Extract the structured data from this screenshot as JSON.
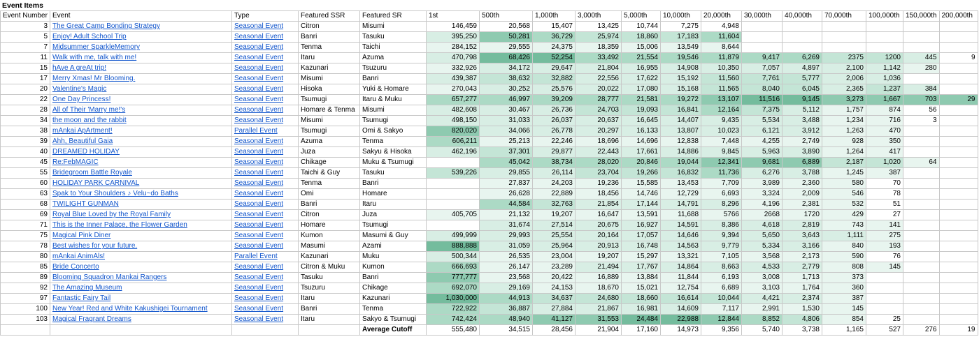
{
  "sheet_title": "Event Items",
  "columns": [
    "Event Number",
    "Event",
    "Type",
    "Featured SSR",
    "Featured SR",
    "1st",
    "500th",
    "1,000th",
    "3,000th",
    "5,000th",
    "10,000th",
    "20,000th",
    "30,000th",
    "40,000th",
    "70,000th",
    "100,000th",
    "150,000th",
    "200,000th"
  ],
  "rows": [
    {
      "no": "3",
      "event": "The Great Camp Bonding Strategy",
      "type": "Seasonal Event",
      "ssr": "Citron",
      "sr": "Misumi",
      "cutoffs": [
        "146,459",
        "20,568",
        "15,407",
        "13,425",
        "10,744",
        "7,275",
        "4,948",
        "",
        "",
        "",
        "",
        "",
        ""
      ],
      "shades": [
        0,
        0,
        0,
        0,
        0,
        0,
        0,
        0,
        0,
        0,
        0,
        0,
        0
      ]
    },
    {
      "no": "5",
      "event": "Enjoy! Adult School Trip",
      "type": "Seasonal Event",
      "ssr": "Banri",
      "sr": "Tasuku",
      "cutoffs": [
        "395,250",
        "50,281",
        "36,729",
        "25,974",
        "18,860",
        "17,183",
        "11,604",
        "",
        "",
        "",
        "",
        "",
        ""
      ],
      "shades": [
        2,
        5,
        4,
        3,
        3,
        3,
        4,
        0,
        0,
        0,
        0,
        0,
        0
      ]
    },
    {
      "no": "7",
      "event": "Midsummer SparkleMemory",
      "type": "Seasonal Event",
      "ssr": "Tenma",
      "sr": "Taichi",
      "cutoffs": [
        "284,152",
        "29,555",
        "24,375",
        "18,359",
        "15,006",
        "13,549",
        "8,644",
        "",
        "",
        "",
        "",
        "",
        ""
      ],
      "shades": [
        1,
        1,
        1,
        1,
        1,
        1,
        1,
        0,
        0,
        0,
        0,
        0,
        0
      ]
    },
    {
      "no": "11",
      "event": "Walk with me, talk with me!",
      "type": "Seasonal Event",
      "ssr": "Itaru",
      "sr": "Azuma",
      "cutoffs": [
        "470,798",
        "68,426",
        "52,254",
        "33,492",
        "21,554",
        "19,546",
        "11,879",
        "9,417",
        "6,269",
        "2375",
        "1200",
        "445",
        "9"
      ],
      "shades": [
        2,
        6,
        6,
        4,
        4,
        4,
        4,
        4,
        4,
        3,
        3,
        2,
        0
      ]
    },
    {
      "no": "15",
      "event": "hAve A greAt trip!",
      "type": "Seasonal Event",
      "ssr": "Kazunari",
      "sr": "Tsuzuru",
      "cutoffs": [
        "332,926",
        "34,172",
        "29,647",
        "21,804",
        "16,955",
        "14,908",
        "10,350",
        "7,057",
        "4,897",
        "2,100",
        "1,142",
        "280",
        ""
      ],
      "shades": [
        1,
        2,
        2,
        2,
        2,
        2,
        2,
        2,
        2,
        2,
        2,
        1,
        0
      ]
    },
    {
      "no": "17",
      "event": "Merry Xmas! Mr Blooming.",
      "type": "Seasonal Event",
      "ssr": "Misumi",
      "sr": "Banri",
      "cutoffs": [
        "439,387",
        "38,632",
        "32,882",
        "22,556",
        "17,622",
        "15,192",
        "11,560",
        "7,761",
        "5,777",
        "2,006",
        "1,036",
        "",
        ""
      ],
      "shades": [
        2,
        3,
        3,
        2,
        2,
        2,
        3,
        3,
        3,
        2,
        2,
        0,
        0
      ]
    },
    {
      "no": "20",
      "event": "Valentine's Magic",
      "type": "Seasonal Event",
      "ssr": "Hisoka",
      "sr": "Yuki & Homare",
      "cutoffs": [
        "270,043",
        "30,252",
        "25,576",
        "20,022",
        "17,080",
        "15,168",
        "11,565",
        "8,040",
        "6,045",
        "2,365",
        "1,237",
        "384",
        ""
      ],
      "shades": [
        1,
        2,
        2,
        2,
        2,
        2,
        3,
        3,
        3,
        2,
        3,
        2,
        0
      ]
    },
    {
      "no": "22",
      "event": "One Day Princess!",
      "type": "Seasonal Event",
      "ssr": "Tsumugi",
      "sr": "Itaru & Muku",
      "cutoffs": [
        "657,277",
        "46,997",
        "39,209",
        "28,777",
        "21,581",
        "19,272",
        "13,107",
        "11,516",
        "9,145",
        "3,273",
        "1,667",
        "703",
        "29"
      ],
      "shades": [
        4,
        4,
        4,
        4,
        4,
        4,
        5,
        6,
        6,
        5,
        5,
        5,
        5
      ]
    },
    {
      "no": "28",
      "event": "All of Their 'Marry me!'s",
      "type": "Seasonal Event",
      "ssr": "Homare & Tenma",
      "sr": "Misumi",
      "cutoffs": [
        "482,608",
        "30,467",
        "26,736",
        "24,703",
        "19,093",
        "16,841",
        "12,164",
        "7,375",
        "5,112",
        "1,757",
        "874",
        "56",
        ""
      ],
      "shades": [
        2,
        2,
        2,
        3,
        3,
        3,
        4,
        3,
        2,
        1,
        1,
        0,
        0
      ]
    },
    {
      "no": "34",
      "event": "the moon and the rabbit",
      "type": "Seasonal Event",
      "ssr": "Misumi",
      "sr": "Tsumugi",
      "cutoffs": [
        "498,150",
        "31,033",
        "26,037",
        "20,637",
        "16,645",
        "14,407",
        "9,435",
        "5,534",
        "3,488",
        "1,234",
        "716",
        "3",
        ""
      ],
      "shades": [
        2,
        2,
        2,
        2,
        2,
        2,
        2,
        2,
        2,
        1,
        1,
        0,
        0
      ]
    },
    {
      "no": "38",
      "event": "mAnkai ApArtment!",
      "type": "Parallel Event",
      "ssr": "Tsumugi",
      "sr": "Omi & Sakyo",
      "cutoffs": [
        "820,020",
        "34,066",
        "26,778",
        "20,297",
        "16,133",
        "13,807",
        "10,023",
        "6,121",
        "3,912",
        "1,263",
        "470",
        "",
        ""
      ],
      "shades": [
        5,
        2,
        2,
        2,
        2,
        2,
        2,
        2,
        2,
        1,
        1,
        0,
        0
      ]
    },
    {
      "no": "39",
      "event": "Ahh, Beautiful Gaia",
      "type": "Seasonal Event",
      "ssr": "Azuma",
      "sr": "Tenma",
      "cutoffs": [
        "606,211",
        "25,213",
        "22,246",
        "18,696",
        "14,696",
        "12,838",
        "7,448",
        "4,255",
        "2,749",
        "928",
        "350",
        "",
        ""
      ],
      "shades": [
        4,
        1,
        1,
        1,
        1,
        1,
        1,
        1,
        1,
        1,
        1,
        0,
        0
      ]
    },
    {
      "no": "40",
      "event": "DREAMED HOLIDAY",
      "type": "Seasonal Event",
      "ssr": "Juza",
      "sr": "Sakyu & Hisoka",
      "cutoffs": [
        "462,196",
        "37,301",
        "29,877",
        "22,443",
        "17,661",
        "14,886",
        "9,845",
        "5,963",
        "3,890",
        "1,264",
        "417",
        "",
        ""
      ],
      "shades": [
        2,
        3,
        2,
        2,
        2,
        2,
        2,
        2,
        2,
        1,
        1,
        0,
        0
      ]
    },
    {
      "no": "45",
      "event": "Re:FebMAGIC",
      "type": "Seasonal Event",
      "ssr": "Chikage",
      "sr": "Muku & Tsumugi",
      "cutoffs": [
        "",
        "45,042",
        "38,734",
        "28,020",
        "20,846",
        "19,044",
        "12,341",
        "9,681",
        "6,889",
        "2,187",
        "1,020",
        "64",
        ""
      ],
      "shades": [
        0,
        4,
        4,
        4,
        4,
        4,
        5,
        5,
        5,
        3,
        3,
        1,
        0
      ]
    },
    {
      "no": "55",
      "event": "Bridegroom Battle Royale",
      "type": "Seasonal Event",
      "ssr": "Taichi & Guy",
      "sr": "Tasuku",
      "cutoffs": [
        "539,226",
        "29,855",
        "26,114",
        "23,704",
        "19,266",
        "16,832",
        "11,736",
        "6,276",
        "3,788",
        "1,245",
        "387",
        "",
        ""
      ],
      "shades": [
        3,
        2,
        2,
        3,
        3,
        3,
        4,
        2,
        2,
        1,
        1,
        0,
        0
      ]
    },
    {
      "no": "60",
      "event": "HOLIDAY PARK CARNIVAL",
      "type": "Seasonal Event",
      "ssr": "Tenma",
      "sr": "Banri",
      "cutoffs": [
        "",
        "27,837",
        "24,203",
        "19,236",
        "15,585",
        "13,453",
        "7,709",
        "3,989",
        "2,360",
        "580",
        "70",
        "",
        ""
      ],
      "shades": [
        0,
        1,
        1,
        1,
        1,
        1,
        1,
        1,
        1,
        1,
        0,
        0,
        0
      ]
    },
    {
      "no": "63",
      "event": "Spak to Your Shoulders ♪ Velu~do Baths",
      "type": "Seasonal Event",
      "ssr": "Omi",
      "sr": "Homare",
      "cutoffs": [
        "",
        "26,628",
        "22,889",
        "18,456",
        "14,746",
        "12,729",
        "6,693",
        "3,324",
        "2,009",
        "546",
        "78",
        "",
        ""
      ],
      "shades": [
        0,
        1,
        1,
        1,
        1,
        1,
        1,
        1,
        1,
        1,
        0,
        0,
        0
      ]
    },
    {
      "no": "68",
      "event": "TWILIGHT GUNMAN",
      "type": "Seasonal Event",
      "ssr": "Banri",
      "sr": "Itaru",
      "cutoffs": [
        "",
        "44,584",
        "32,763",
        "21,854",
        "17,144",
        "14,791",
        "8,296",
        "4,196",
        "2,381",
        "532",
        "51",
        "",
        ""
      ],
      "shades": [
        0,
        4,
        3,
        2,
        2,
        2,
        2,
        1,
        1,
        1,
        0,
        0,
        0
      ]
    },
    {
      "no": "69",
      "event": "Royal Blue Loved by the Royal Family",
      "type": "Seasonal Event",
      "ssr": "Citron",
      "sr": "Juza",
      "cutoffs": [
        "405,705",
        "21,132",
        "19,207",
        "16,647",
        "13,591",
        "11,688",
        "5766",
        "2668",
        "1720",
        "429",
        "27",
        "",
        ""
      ],
      "shades": [
        1,
        1,
        1,
        1,
        1,
        1,
        1,
        1,
        1,
        1,
        0,
        0,
        0
      ]
    },
    {
      "no": "71",
      "event": "This is the Inner Palace, the Flower Garden",
      "type": "Seasonal Event",
      "ssr": "Homare",
      "sr": "Tsumugi",
      "cutoffs": [
        "",
        "31,674",
        "27,514",
        "20,675",
        "16,927",
        "14,591",
        "8,386",
        "4,618",
        "2,819",
        "743",
        "141",
        "",
        ""
      ],
      "shades": [
        0,
        2,
        2,
        2,
        2,
        2,
        2,
        2,
        2,
        1,
        1,
        0,
        0
      ]
    },
    {
      "no": "75",
      "event": "Magical Pink Diner",
      "type": "Seasonal Event",
      "ssr": "Kumon",
      "sr": "Masumi & Guy",
      "cutoffs": [
        "499,999",
        "29,993",
        "25,554",
        "20,164",
        "17,057",
        "14,646",
        "9,394",
        "5,650",
        "3,643",
        "1,111",
        "275",
        "",
        ""
      ],
      "shades": [
        2,
        2,
        2,
        2,
        2,
        2,
        2,
        2,
        2,
        2,
        1,
        0,
        0
      ]
    },
    {
      "no": "78",
      "event": "Best wishes for your future.",
      "type": "Seasonal Event",
      "ssr": "Masumi",
      "sr": "Azami",
      "cutoffs": [
        "888,888",
        "31,059",
        "25,964",
        "20,913",
        "16,748",
        "14,563",
        "9,779",
        "5,334",
        "3,166",
        "840",
        "193",
        "",
        ""
      ],
      "shades": [
        6,
        2,
        2,
        2,
        2,
        2,
        2,
        2,
        2,
        1,
        1,
        0,
        0
      ]
    },
    {
      "no": "80",
      "event": "mAnkai AnimAls!",
      "type": "Parallel Event",
      "ssr": "Kazunari",
      "sr": "Muku",
      "cutoffs": [
        "500,344",
        "26,535",
        "23,004",
        "19,207",
        "15,297",
        "13,321",
        "7,105",
        "3,568",
        "2,173",
        "590",
        "76",
        "",
        ""
      ],
      "shades": [
        2,
        1,
        1,
        1,
        1,
        1,
        1,
        1,
        1,
        1,
        0,
        0,
        0
      ]
    },
    {
      "no": "85",
      "event": "Bride Concerto",
      "type": "Seasonal Event",
      "ssr": "Citron & Muku",
      "sr": "Kumon",
      "cutoffs": [
        "666,693",
        "26,147",
        "23,289",
        "21,494",
        "17,767",
        "14,864",
        "8,663",
        "4,533",
        "2,779",
        "808",
        "145",
        "",
        ""
      ],
      "shades": [
        4,
        1,
        1,
        2,
        2,
        2,
        2,
        2,
        2,
        1,
        1,
        0,
        0
      ]
    },
    {
      "no": "89",
      "event": "Blooming Squadron Mankai Rangers",
      "type": "Seasonal Event",
      "ssr": "Tasuku",
      "sr": "Banri",
      "cutoffs": [
        "777,777",
        "23,568",
        "20,422",
        "16,889",
        "13,884",
        "11,844",
        "6,193",
        "3,008",
        "1,713",
        "373",
        "",
        "",
        ""
      ],
      "shades": [
        5,
        1,
        1,
        1,
        1,
        1,
        1,
        1,
        1,
        1,
        0,
        0,
        0
      ]
    },
    {
      "no": "92",
      "event": "The Amazing Museum",
      "type": "Seasonal Event",
      "ssr": "Tsuzuru",
      "sr": "Chikage",
      "cutoffs": [
        "692,070",
        "29,169",
        "24,153",
        "18,670",
        "15,021",
        "12,754",
        "6,689",
        "3,103",
        "1,764",
        "360",
        "",
        "",
        ""
      ],
      "shades": [
        4,
        2,
        1,
        1,
        1,
        1,
        1,
        1,
        1,
        1,
        0,
        0,
        0
      ]
    },
    {
      "no": "97",
      "event": "Fantastic Fairy Tail",
      "type": "Seasonal Event",
      "ssr": "Itaru",
      "sr": "Kazunari",
      "cutoffs": [
        "1,030,000",
        "44,913",
        "34,637",
        "24,680",
        "18,660",
        "16,614",
        "10,044",
        "4,421",
        "2,374",
        "387",
        "",
        "",
        ""
      ],
      "shades": [
        6,
        4,
        3,
        3,
        3,
        3,
        3,
        2,
        2,
        1,
        0,
        0,
        0
      ]
    },
    {
      "no": "100",
      "event": "New Year! Red and White Kakushigei Tournament",
      "type": "Seasonal Event",
      "ssr": "Banri",
      "sr": "Tenma",
      "cutoffs": [
        "722,922",
        "36,887",
        "27,884",
        "21,867",
        "16,981",
        "14,609",
        "7,117",
        "2,991",
        "1,530",
        "145",
        "",
        "",
        ""
      ],
      "shades": [
        4,
        3,
        2,
        2,
        2,
        2,
        1,
        1,
        1,
        1,
        0,
        0,
        0
      ]
    },
    {
      "no": "103",
      "event": "Magical Fragrant Dreams",
      "type": "Seasonal Event",
      "ssr": "Itaru",
      "sr": "Sakyo & Tsumugi",
      "cutoffs": [
        "742,424",
        "48,940",
        "41,127",
        "31,553",
        "24,484",
        "22,988",
        "12,844",
        "8,852",
        "4,806",
        "854",
        "25",
        "",
        ""
      ],
      "shades": [
        4,
        4,
        5,
        5,
        6,
        6,
        5,
        4,
        3,
        1,
        0,
        0,
        0
      ]
    }
  ],
  "average_label": "Average Cutoff",
  "average": [
    "555,480",
    "34,515",
    "28,456",
    "21,904",
    "17,160",
    "14,973",
    "9,356",
    "5,740",
    "3,738",
    "1,165",
    "527",
    "276",
    "19"
  ],
  "colors": {
    "link": "#1155cc",
    "grid": "#c8c8c8",
    "shade_scale": [
      "#ffffff",
      "#e8f5ef",
      "#d8eee4",
      "#c4e5d6",
      "#acdac5",
      "#8ecab0",
      "#74bc9d"
    ]
  }
}
